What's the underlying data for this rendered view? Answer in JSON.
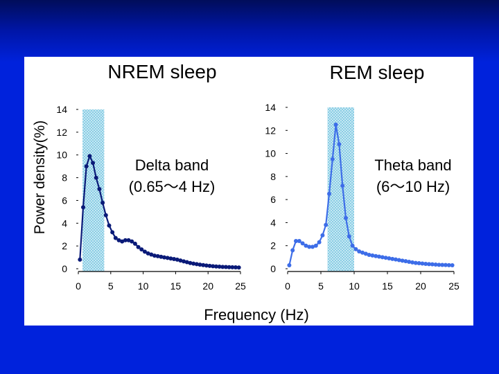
{
  "figure": {
    "ylabel": "Power density(%)",
    "xlabel": "Frequency (Hz)"
  },
  "colors": {
    "slide_background": "#0022dc",
    "nrem_series": "#0a1a78",
    "rem_series": "#3d6de8",
    "band_shading": "#8fd2e8"
  },
  "chart_data": [
    {
      "type": "line",
      "title": "NREM sleep",
      "xlabel": "Frequency (Hz)",
      "ylabel": "Power density(%)",
      "xlim": [
        0,
        25
      ],
      "ylim": [
        0,
        14
      ],
      "xticks": [
        "0",
        "5",
        "10",
        "15",
        "20",
        "25"
      ],
      "yticks": [
        "0",
        "2",
        "4",
        "6",
        "8",
        "10",
        "12",
        "14"
      ],
      "band": {
        "range": [
          0.65,
          4
        ],
        "label_line1": "Delta band",
        "label_line2": "(0.65～4 Hz)"
      },
      "series": [
        {
          "color": "#0a1a78",
          "x": [
            0.25,
            0.75,
            1.25,
            1.75,
            2.25,
            2.75,
            3.25,
            3.75,
            4.25,
            4.75,
            5.25,
            5.75,
            6.25,
            6.75,
            7.25,
            7.75,
            8.25,
            8.75,
            9.25,
            9.75,
            10.25,
            10.75,
            11.25,
            11.75,
            12.25,
            12.75,
            13.25,
            13.75,
            14.25,
            14.75,
            15.25,
            15.75,
            16.25,
            16.75,
            17.25,
            17.75,
            18.25,
            18.75,
            19.25,
            19.75,
            20.25,
            20.75,
            21.25,
            21.75,
            22.25,
            22.75,
            23.25,
            23.75,
            24.25,
            24.75
          ],
          "y": [
            0.8,
            5.4,
            9.0,
            9.9,
            9.3,
            8.0,
            7.0,
            5.8,
            4.7,
            3.8,
            3.2,
            2.7,
            2.5,
            2.4,
            2.5,
            2.5,
            2.4,
            2.2,
            1.9,
            1.7,
            1.5,
            1.35,
            1.25,
            1.15,
            1.1,
            1.05,
            1.0,
            0.95,
            0.9,
            0.85,
            0.8,
            0.72,
            0.65,
            0.58,
            0.5,
            0.45,
            0.4,
            0.36,
            0.32,
            0.28,
            0.25,
            0.22,
            0.2,
            0.18,
            0.16,
            0.15,
            0.14,
            0.13,
            0.12,
            0.11
          ]
        }
      ]
    },
    {
      "type": "line",
      "title": "REM sleep",
      "xlabel": "Frequency (Hz)",
      "ylabel": "Power density(%)",
      "xlim": [
        0,
        25
      ],
      "ylim": [
        0,
        14
      ],
      "xticks": [
        "0",
        "5",
        "10",
        "15",
        "20",
        "25"
      ],
      "yticks": [
        "0",
        "2",
        "4",
        "6",
        "8",
        "10",
        "12",
        "14"
      ],
      "band": {
        "range": [
          6,
          10
        ],
        "label_line1": "Theta band",
        "label_line2": "(6～10 Hz)"
      },
      "series": [
        {
          "color": "#3d6de8",
          "x": [
            0.25,
            0.75,
            1.25,
            1.75,
            2.25,
            2.75,
            3.25,
            3.75,
            4.25,
            4.75,
            5.25,
            5.75,
            6.25,
            6.75,
            7.25,
            7.75,
            8.25,
            8.75,
            9.25,
            9.75,
            10.25,
            10.75,
            11.25,
            11.75,
            12.25,
            12.75,
            13.25,
            13.75,
            14.25,
            14.75,
            15.25,
            15.75,
            16.25,
            16.75,
            17.25,
            17.75,
            18.25,
            18.75,
            19.25,
            19.75,
            20.25,
            20.75,
            21.25,
            21.75,
            22.25,
            22.75,
            23.25,
            23.75,
            24.25,
            24.75
          ],
          "y": [
            0.3,
            1.6,
            2.4,
            2.4,
            2.2,
            2.0,
            1.9,
            1.9,
            2.0,
            2.3,
            2.9,
            3.8,
            6.5,
            9.5,
            12.5,
            10.8,
            7.2,
            4.4,
            2.8,
            2.0,
            1.7,
            1.5,
            1.4,
            1.3,
            1.2,
            1.15,
            1.1,
            1.05,
            1.0,
            0.95,
            0.9,
            0.85,
            0.8,
            0.75,
            0.7,
            0.65,
            0.6,
            0.55,
            0.5,
            0.48,
            0.45,
            0.42,
            0.4,
            0.38,
            0.36,
            0.34,
            0.33,
            0.32,
            0.31,
            0.3
          ]
        }
      ]
    }
  ]
}
